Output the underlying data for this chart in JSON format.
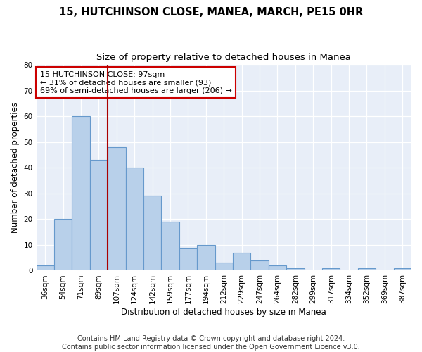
{
  "title": "15, HUTCHINSON CLOSE, MANEA, MARCH, PE15 0HR",
  "subtitle": "Size of property relative to detached houses in Manea",
  "xlabel": "Distribution of detached houses by size in Manea",
  "ylabel": "Number of detached properties",
  "bin_labels": [
    "36sqm",
    "54sqm",
    "71sqm",
    "89sqm",
    "107sqm",
    "124sqm",
    "142sqm",
    "159sqm",
    "177sqm",
    "194sqm",
    "212sqm",
    "229sqm",
    "247sqm",
    "264sqm",
    "282sqm",
    "299sqm",
    "317sqm",
    "334sqm",
    "352sqm",
    "369sqm",
    "387sqm"
  ],
  "bar_values": [
    2,
    20,
    60,
    43,
    48,
    40,
    29,
    19,
    9,
    10,
    3,
    7,
    4,
    2,
    1,
    0,
    1,
    0,
    1,
    0,
    1
  ],
  "bar_color": "#b8d0ea",
  "bar_edge_color": "#6699cc",
  "vline_x": 3.5,
  "vline_color": "#aa0000",
  "annotation_line1": "15 HUTCHINSON CLOSE: 97sqm",
  "annotation_line2": "← 31% of detached houses are smaller (93)",
  "annotation_line3": "69% of semi-detached houses are larger (206) →",
  "annotation_box_color": "#ffffff",
  "annotation_box_edge_color": "#cc0000",
  "ylim": [
    0,
    80
  ],
  "yticks": [
    0,
    10,
    20,
    30,
    40,
    50,
    60,
    70,
    80
  ],
  "plot_bg_color": "#e8eef8",
  "footer_line1": "Contains HM Land Registry data © Crown copyright and database right 2024.",
  "footer_line2": "Contains public sector information licensed under the Open Government Licence v3.0.",
  "title_fontsize": 10.5,
  "subtitle_fontsize": 9.5,
  "axis_label_fontsize": 8.5,
  "tick_fontsize": 7.5,
  "annotation_fontsize": 8,
  "footer_fontsize": 7
}
